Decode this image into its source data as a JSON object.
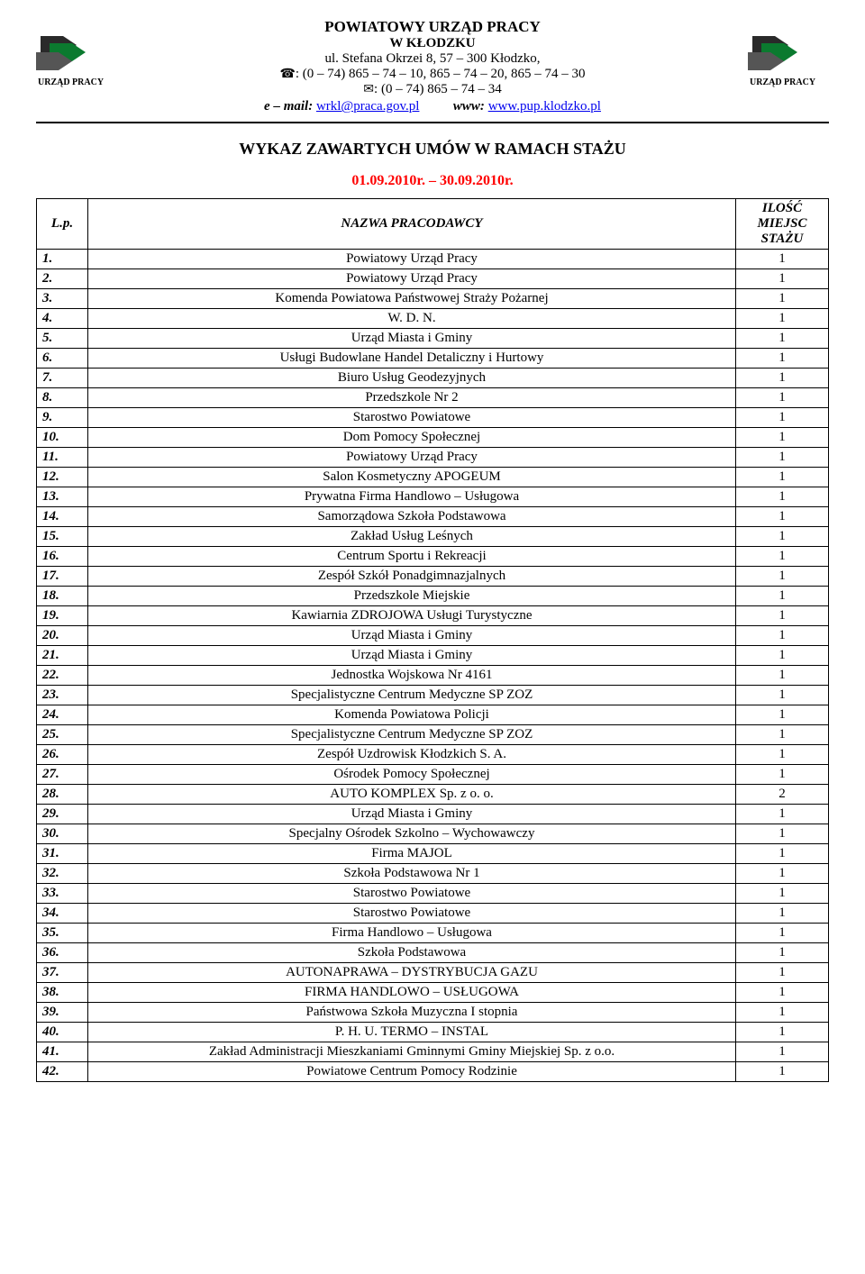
{
  "header": {
    "org_line1": "POWIATOWY URZĄD PRACY",
    "org_line2": "W KŁODZKU",
    "address": "ul. Stefana Okrzei 8, 57 – 300 Kłodzko,",
    "phone_icon": "phone-icon",
    "phone_line": ": (0 – 74) 865 – 74 – 10, 865 – 74 – 20, 865 – 74 – 30",
    "fax_icon": "fax-icon",
    "fax_line": ": (0 – 74) 865 – 74 – 34",
    "email_prefix": "e – mail:",
    "email_addr": "wrkl@praca.gov.pl",
    "www_prefix": "www:",
    "www_addr": "www.pup.klodzko.pl",
    "logo_label_left": "URZĄD PRACY",
    "logo_label_right": "URZĄD PRACY"
  },
  "title": "WYKAZ ZAWARTYCH UMÓW W RAMACH STAŻU",
  "date_range": "01.09.2010r. – 30.09.2010r.",
  "date_color": "#ff0000",
  "columns": {
    "lp": "L.p.",
    "name": "NAZWA PRACODAWCY",
    "count": "ILOŚĆ MIEJSC STAŻU"
  },
  "rows": [
    {
      "lp": "1.",
      "name": "Powiatowy Urząd Pracy",
      "count": "1"
    },
    {
      "lp": "2.",
      "name": "Powiatowy Urząd Pracy",
      "count": "1"
    },
    {
      "lp": "3.",
      "name": "Komenda Powiatowa Państwowej Straży Pożarnej",
      "count": "1"
    },
    {
      "lp": "4.",
      "name": "W. D. N.",
      "count": "1"
    },
    {
      "lp": "5.",
      "name": "Urząd Miasta i Gminy",
      "count": "1"
    },
    {
      "lp": "6.",
      "name": "Usługi Budowlane Handel Detaliczny i Hurtowy",
      "count": "1"
    },
    {
      "lp": "7.",
      "name": "Biuro Usług Geodezyjnych",
      "count": "1"
    },
    {
      "lp": "8.",
      "name": "Przedszkole Nr 2",
      "count": "1"
    },
    {
      "lp": "9.",
      "name": "Starostwo Powiatowe",
      "count": "1"
    },
    {
      "lp": "10.",
      "name": "Dom Pomocy Społecznej",
      "count": "1"
    },
    {
      "lp": "11.",
      "name": "Powiatowy Urząd Pracy",
      "count": "1"
    },
    {
      "lp": "12.",
      "name": "Salon Kosmetyczny APOGEUM",
      "count": "1"
    },
    {
      "lp": "13.",
      "name": "Prywatna Firma Handlowo – Usługowa",
      "count": "1"
    },
    {
      "lp": "14.",
      "name": "Samorządowa Szkoła Podstawowa",
      "count": "1"
    },
    {
      "lp": "15.",
      "name": "Zakład Usług Leśnych",
      "count": "1"
    },
    {
      "lp": "16.",
      "name": "Centrum Sportu i Rekreacji",
      "count": "1"
    },
    {
      "lp": "17.",
      "name": "Zespół Szkół Ponadgimnazjalnych",
      "count": "1"
    },
    {
      "lp": "18.",
      "name": "Przedszkole Miejskie",
      "count": "1"
    },
    {
      "lp": "19.",
      "name": "Kawiarnia ZDROJOWA Usługi Turystyczne",
      "count": "1"
    },
    {
      "lp": "20.",
      "name": "Urząd Miasta i Gminy",
      "count": "1"
    },
    {
      "lp": "21.",
      "name": "Urząd Miasta i Gminy",
      "count": "1"
    },
    {
      "lp": "22.",
      "name": "Jednostka Wojskowa Nr 4161",
      "count": "1"
    },
    {
      "lp": "23.",
      "name": "Specjalistyczne Centrum Medyczne SP ZOZ",
      "count": "1"
    },
    {
      "lp": "24.",
      "name": "Komenda Powiatowa Policji",
      "count": "1"
    },
    {
      "lp": "25.",
      "name": "Specjalistyczne Centrum Medyczne SP ZOZ",
      "count": "1"
    },
    {
      "lp": "26.",
      "name": "Zespół Uzdrowisk Kłodzkich S. A.",
      "count": "1"
    },
    {
      "lp": "27.",
      "name": "Ośrodek Pomocy Społecznej",
      "count": "1"
    },
    {
      "lp": "28.",
      "name": "AUTO KOMPLEX Sp. z o. o.",
      "count": "2"
    },
    {
      "lp": "29.",
      "name": "Urząd Miasta i Gminy",
      "count": "1"
    },
    {
      "lp": "30.",
      "name": "Specjalny Ośrodek Szkolno – Wychowawczy",
      "count": "1"
    },
    {
      "lp": "31.",
      "name": "Firma MAJOL",
      "count": "1"
    },
    {
      "lp": "32.",
      "name": "Szkoła Podstawowa Nr 1",
      "count": "1"
    },
    {
      "lp": "33.",
      "name": "Starostwo Powiatowe",
      "count": "1"
    },
    {
      "lp": "34.",
      "name": "Starostwo Powiatowe",
      "count": "1"
    },
    {
      "lp": "35.",
      "name": "Firma Handlowo – Usługowa",
      "count": "1"
    },
    {
      "lp": "36.",
      "name": "Szkoła Podstawowa",
      "count": "1"
    },
    {
      "lp": "37.",
      "name": "AUTONAPRAWA – DYSTRYBUCJA GAZU",
      "count": "1"
    },
    {
      "lp": "38.",
      "name": "FIRMA HANDLOWO – USŁUGOWA",
      "count": "1"
    },
    {
      "lp": "39.",
      "name": "Państwowa Szkoła Muzyczna I stopnia",
      "count": "1"
    },
    {
      "lp": "40.",
      "name": "P. H. U. TERMO – INSTAL",
      "count": "1"
    },
    {
      "lp": "41.",
      "name": "Zakład Administracji Mieszkaniami Gminnymi Gminy Miejskiej Sp. z o.o.",
      "count": "1"
    },
    {
      "lp": "42.",
      "name": "Powiatowe Centrum Pomocy Rodzinie",
      "count": "1"
    }
  ]
}
